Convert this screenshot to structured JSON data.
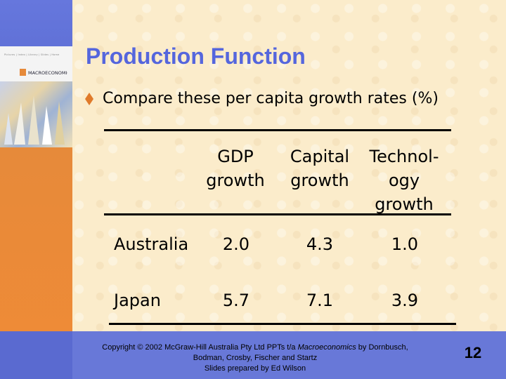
{
  "slide": {
    "title": "Production Function",
    "bullet": "Compare these per capita growth rates (%)",
    "number": "12"
  },
  "cover": {
    "nav_text": "Pictures | Index | Library | Slides | Home",
    "logo_text": "MACROECONOMICS"
  },
  "table": {
    "headers": [
      "GDP\ngrowth",
      "Capital\ngrowth",
      "Technol-\nogy\ngrowth"
    ],
    "rows": [
      {
        "label": "Australia",
        "values": [
          "2.0",
          "4.3",
          "1.0"
        ]
      },
      {
        "label": "Japan",
        "values": [
          "5.7",
          "7.1",
          "3.9"
        ]
      }
    ]
  },
  "footer": {
    "line1_prefix": "Copyright © 2002 McGraw-Hill Australia Pty Ltd PPTs t/a ",
    "line1_italic": "Macroeconomics",
    "line1_suffix": " by Dornbusch,",
    "line2": "Bodman, Crosby, Fischer and Startz",
    "line3": "Slides prepared by Ed Wilson"
  },
  "colors": {
    "title": "#5566dd",
    "left_bar_top": "#6677dd",
    "left_bar_bottom": "#f08b36",
    "bottom_band": "#6878d8",
    "background": "#fbeccb"
  }
}
